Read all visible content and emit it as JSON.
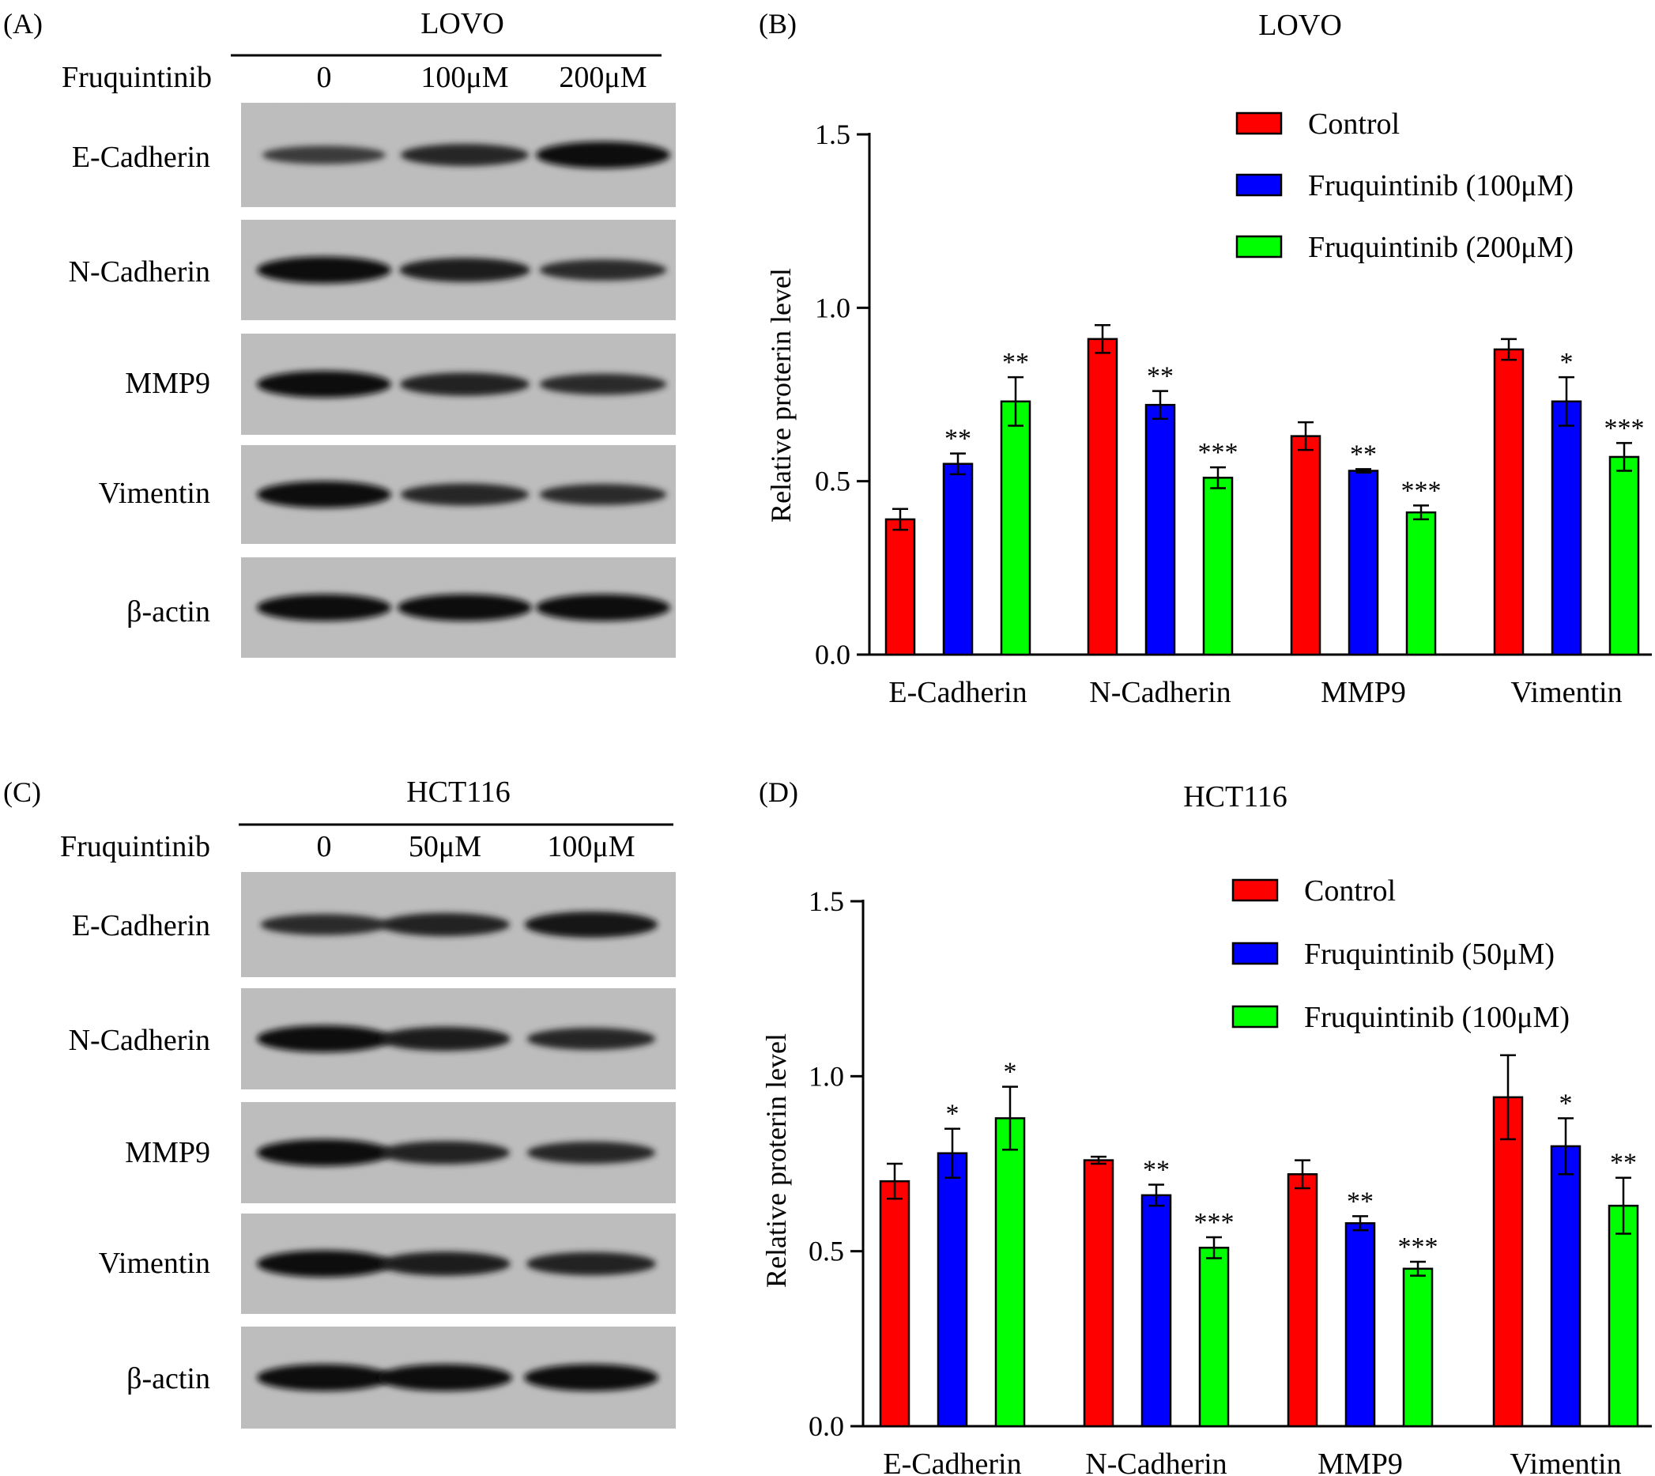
{
  "panels": {
    "A": {
      "label": "(A)",
      "cell_line": "LOVO",
      "treatment_label": "Fruquintinib",
      "lanes": [
        "0",
        "100μM",
        "200μM"
      ],
      "bands": [
        {
          "name": "E-Cadherin",
          "intensity": [
            0.55,
            0.75,
            1.0
          ]
        },
        {
          "name": "N-Cadherin",
          "intensity": [
            1.0,
            0.85,
            0.7
          ]
        },
        {
          "name": "MMP9",
          "intensity": [
            1.0,
            0.8,
            0.7
          ]
        },
        {
          "name": "Vimentin",
          "intensity": [
            1.0,
            0.75,
            0.7
          ]
        },
        {
          "name": "β-actin",
          "intensity": [
            1.0,
            1.0,
            1.0
          ]
        }
      ]
    },
    "C": {
      "label": "(C)",
      "cell_line": "HCT116",
      "treatment_label": "Fruquintinib",
      "lanes": [
        "0",
        "50μM",
        "100μM"
      ],
      "bands": [
        {
          "name": "E-Cadherin",
          "intensity": [
            0.7,
            0.8,
            0.95
          ]
        },
        {
          "name": "N-Cadherin",
          "intensity": [
            1.0,
            0.85,
            0.75
          ]
        },
        {
          "name": "MMP9",
          "intensity": [
            1.0,
            0.8,
            0.75
          ]
        },
        {
          "name": "Vimentin",
          "intensity": [
            1.0,
            0.85,
            0.8
          ]
        },
        {
          "name": "β-actin",
          "intensity": [
            1.0,
            1.0,
            1.0
          ]
        }
      ]
    }
  },
  "chart_data": [
    {
      "type": "bar",
      "panel_label": "(B)",
      "title": "LOVO",
      "ylabel": "Relative proterin level",
      "ylim": [
        0,
        1.5
      ],
      "yticks": [
        "0.0",
        "0.5",
        "1.0",
        "1.5"
      ],
      "categories": [
        "E-Cadherin",
        "N-Cadherin",
        "MMP9",
        "Vimentin"
      ],
      "legend_position": "top-right",
      "series": [
        {
          "name": "Control",
          "color": "#ff0000",
          "values": [
            0.39,
            0.91,
            0.63,
            0.88
          ],
          "errors": [
            0.03,
            0.04,
            0.04,
            0.03
          ],
          "sig": [
            "",
            "",
            "",
            ""
          ]
        },
        {
          "name": "Fruquintinib (100μM)",
          "color": "#0000ff",
          "values": [
            0.55,
            0.72,
            0.53,
            0.73
          ],
          "errors": [
            0.03,
            0.04,
            0.005,
            0.07
          ],
          "sig": [
            "**",
            "**",
            "**",
            "*"
          ]
        },
        {
          "name": "Fruquintinib (200μM)",
          "color": "#00ff00",
          "values": [
            0.73,
            0.51,
            0.41,
            0.57
          ],
          "errors": [
            0.07,
            0.03,
            0.02,
            0.04
          ],
          "sig": [
            "**",
            "***",
            "***",
            "***"
          ]
        }
      ]
    },
    {
      "type": "bar",
      "panel_label": "(D)",
      "title": "HCT116",
      "ylabel": "Relative proterin level",
      "ylim": [
        0,
        1.5
      ],
      "yticks": [
        "0.0",
        "0.5",
        "1.0",
        "1.5"
      ],
      "categories": [
        "E-Cadherin",
        "N-Cadherin",
        "MMP9",
        "Vimentin"
      ],
      "legend_position": "top-right",
      "series": [
        {
          "name": "Control",
          "color": "#ff0000",
          "values": [
            0.7,
            0.76,
            0.72,
            0.94
          ],
          "errors": [
            0.05,
            0.01,
            0.04,
            0.12
          ],
          "sig": [
            "",
            "",
            "",
            ""
          ]
        },
        {
          "name": "Fruquintinib (50μM)",
          "color": "#0000ff",
          "values": [
            0.78,
            0.66,
            0.58,
            0.8
          ],
          "errors": [
            0.07,
            0.03,
            0.02,
            0.08
          ],
          "sig": [
            "*",
            "**",
            "**",
            "*"
          ]
        },
        {
          "name": "Fruquintinib (100μM)",
          "color": "#00ff00",
          "values": [
            0.88,
            0.51,
            0.45,
            0.63
          ],
          "errors": [
            0.09,
            0.03,
            0.02,
            0.08
          ],
          "sig": [
            "*",
            "***",
            "***",
            "**"
          ]
        }
      ]
    }
  ]
}
